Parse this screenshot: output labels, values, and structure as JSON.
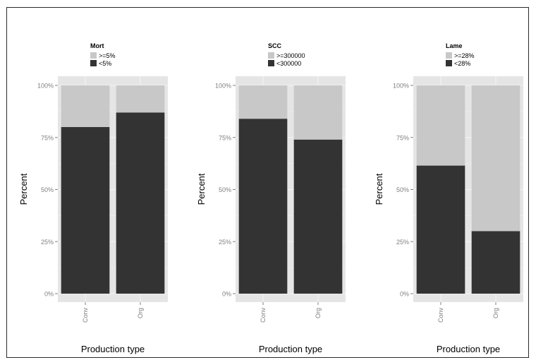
{
  "chart_data": [
    {
      "type": "bar",
      "stacked": true,
      "legend_title": "Mort",
      "categories": [
        "Conv",
        "Org"
      ],
      "xlabel": "Production type",
      "ylabel": "Percent",
      "yticks": [
        "0%",
        "25%",
        "50%",
        "75%",
        "100%"
      ],
      "ylim": [
        0,
        100
      ],
      "legend_placement": "top",
      "series": [
        {
          "name": ">=5%",
          "values": [
            20,
            13
          ],
          "color": "#c8c8c8"
        },
        {
          "name": "<5%",
          "values": [
            80,
            87
          ],
          "color": "#333333"
        }
      ]
    },
    {
      "type": "bar",
      "stacked": true,
      "legend_title": "SCC",
      "categories": [
        "Conv",
        "Org"
      ],
      "xlabel": "Production type",
      "ylabel": "Percent",
      "yticks": [
        "0%",
        "25%",
        "50%",
        "75%",
        "100%"
      ],
      "ylim": [
        0,
        100
      ],
      "legend_placement": "top",
      "series": [
        {
          "name": ">=300000",
          "values": [
            16,
            26
          ],
          "color": "#c8c8c8"
        },
        {
          "name": "<300000",
          "values": [
            84,
            74
          ],
          "color": "#333333"
        }
      ]
    },
    {
      "type": "bar",
      "stacked": true,
      "legend_title": "Lame",
      "categories": [
        "Conv",
        "Org"
      ],
      "xlabel": "Production type",
      "ylabel": "Percent",
      "yticks": [
        "0%",
        "25%",
        "50%",
        "75%",
        "100%"
      ],
      "ylim": [
        0,
        100
      ],
      "legend_placement": "top",
      "series": [
        {
          "name": ">=28%",
          "values": [
            38.5,
            70
          ],
          "color": "#c8c8c8"
        },
        {
          "name": "<28%",
          "values": [
            61.5,
            30
          ],
          "color": "#333333"
        }
      ]
    }
  ],
  "style": {
    "panel_background": "#e5e5e5",
    "grid_color": "#f2f2f2",
    "axis_text_color": "#7f7f7f",
    "label_color": "#000000"
  }
}
